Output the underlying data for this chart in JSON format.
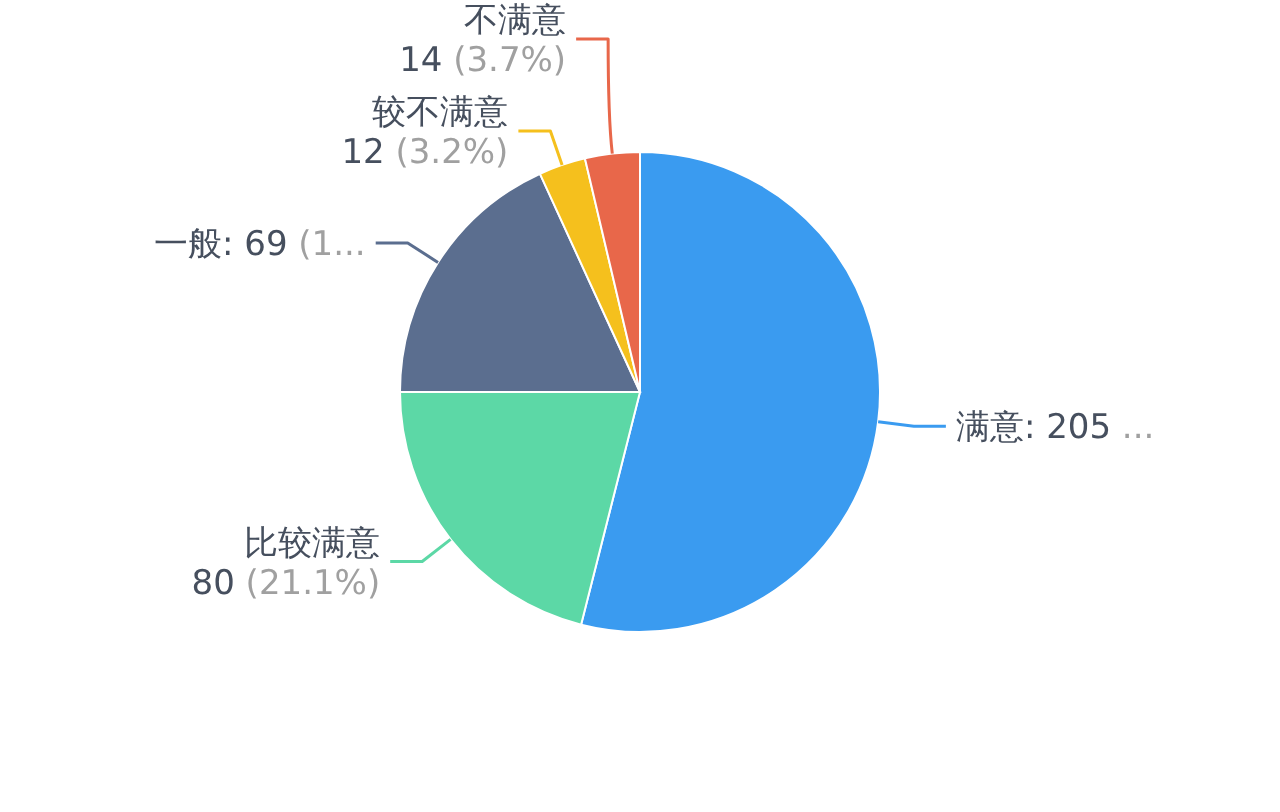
{
  "chart_data": {
    "type": "pie",
    "categories": [
      "满意",
      "比较满意",
      "一般",
      "较不满意",
      "不满意"
    ],
    "values": [
      205,
      80,
      69,
      12,
      14
    ],
    "value_labels": [
      ": 205 ...",
      "80 (21.1%)",
      ": 69 (1...",
      "12 (3.2%)",
      "14 (3.7%)"
    ],
    "colors": [
      "#3a9bf0",
      "#5cd8a6",
      "#5b6e8f",
      "#f5c01d",
      "#e8674a"
    ]
  }
}
